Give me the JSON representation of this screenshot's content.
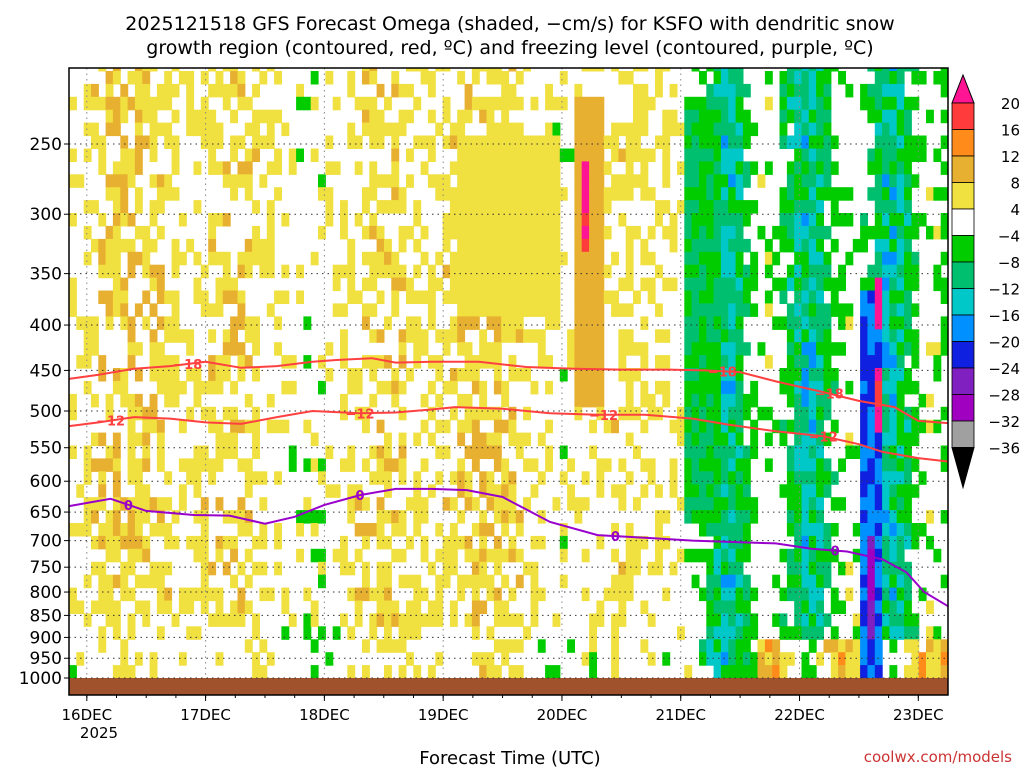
{
  "title_line1": "2025121518 GFS Forecast Omega (shaded, −cm/s) for KSFO with dendritic snow",
  "title_line2": "growth region (contoured, red, ºC) and freezing level (contoured, purple, ºC)",
  "credit": "coolwx.com/models",
  "chart_data": {
    "type": "heatmap",
    "title": "2025121518 GFS Forecast Omega (shaded, −cm/s) for KSFO with dendritic snow growth region (contoured, red, ºC) and freezing level (contoured, purple, ºC)",
    "xlabel": "Forecast Time (UTC)",
    "ylabel": "",
    "x_start_label_year": "2025",
    "xlim_days": [
      -0.15,
      7.25
    ],
    "ylim_hpa": [
      1000,
      200
    ],
    "x_ticks": [
      {
        "label": "16DEC",
        "day": 0
      },
      {
        "label": "17DEC",
        "day": 1
      },
      {
        "label": "18DEC",
        "day": 2
      },
      {
        "label": "19DEC",
        "day": 3
      },
      {
        "label": "20DEC",
        "day": 4
      },
      {
        "label": "21DEC",
        "day": 5
      },
      {
        "label": "22DEC",
        "day": 6
      },
      {
        "label": "23DEC",
        "day": 7
      }
    ],
    "y_ticks": [
      250,
      300,
      350,
      400,
      450,
      500,
      550,
      600,
      650,
      700,
      750,
      800,
      850,
      900,
      950,
      1000
    ],
    "grid": true,
    "colorbar": {
      "labels": [
        "20",
        "16",
        "12",
        "8",
        "4",
        "−4",
        "−8",
        "−12",
        "−16",
        "−20",
        "−24",
        "−28",
        "−32",
        "−36"
      ],
      "bands": [
        {
          "from": 20,
          "to": 24,
          "color": "#ff1493"
        },
        {
          "from": 16,
          "to": 20,
          "color": "#ff3b3b"
        },
        {
          "from": 12,
          "to": 16,
          "color": "#ff8c1a"
        },
        {
          "from": 8,
          "to": 12,
          "color": "#e8b030"
        },
        {
          "from": 4,
          "to": 8,
          "color": "#f0e040"
        },
        {
          "from": -4,
          "to": 4,
          "color": "#ffffff"
        },
        {
          "from": -8,
          "to": -4,
          "color": "#00cc00"
        },
        {
          "from": -12,
          "to": -8,
          "color": "#00c070"
        },
        {
          "from": -16,
          "to": -12,
          "color": "#00c8c8"
        },
        {
          "from": -20,
          "to": -16,
          "color": "#0090ff"
        },
        {
          "from": -24,
          "to": -20,
          "color": "#1020e0"
        },
        {
          "from": -28,
          "to": -24,
          "color": "#8020c0"
        },
        {
          "from": -32,
          "to": -28,
          "color": "#a000c0"
        },
        {
          "from": -36,
          "to": -32,
          "color": "#a0a0a0"
        }
      ]
    },
    "contours": [
      {
        "name": "-18C isotherm",
        "label": "−18",
        "color": "#ff4040",
        "points": [
          [
            -0.15,
            460
          ],
          [
            0.1,
            455
          ],
          [
            0.4,
            448
          ],
          [
            0.7,
            445
          ],
          [
            1.0,
            440
          ],
          [
            1.3,
            447
          ],
          [
            1.6,
            445
          ],
          [
            1.9,
            440
          ],
          [
            2.1,
            438
          ],
          [
            2.4,
            436
          ],
          [
            2.6,
            441
          ],
          [
            2.9,
            440
          ],
          [
            3.3,
            440
          ],
          [
            3.7,
            446
          ],
          [
            4.1,
            448
          ],
          [
            4.5,
            449
          ],
          [
            4.9,
            449
          ],
          [
            5.2,
            450
          ],
          [
            5.5,
            452
          ],
          [
            5.8,
            463
          ],
          [
            6.2,
            476
          ],
          [
            6.5,
            487
          ],
          [
            6.8,
            495
          ],
          [
            7.0,
            513
          ],
          [
            7.25,
            516
          ]
        ],
        "label_days": [
          0.85,
          5.35,
          6.25
        ]
      },
      {
        "name": "-12C isotherm",
        "label": "−12",
        "color": "#ff4040",
        "points": [
          [
            -0.15,
            520
          ],
          [
            0.1,
            515
          ],
          [
            0.4,
            508
          ],
          [
            0.7,
            510
          ],
          [
            1.0,
            515
          ],
          [
            1.3,
            517
          ],
          [
            1.6,
            508
          ],
          [
            1.9,
            500
          ],
          [
            2.3,
            503
          ],
          [
            2.6,
            502
          ],
          [
            2.9,
            498
          ],
          [
            3.1,
            495
          ],
          [
            3.5,
            497
          ],
          [
            3.9,
            503
          ],
          [
            4.3,
            505
          ],
          [
            4.7,
            505
          ],
          [
            5.1,
            510
          ],
          [
            5.4,
            518
          ],
          [
            5.8,
            527
          ],
          [
            6.2,
            534
          ],
          [
            6.5,
            545
          ],
          [
            6.7,
            556
          ],
          [
            7.0,
            565
          ],
          [
            7.25,
            570
          ]
        ],
        "label_days": [
          0.2,
          2.3,
          4.35,
          6.2
        ]
      },
      {
        "name": "0C freezing level",
        "label": "0",
        "color": "#9900cc",
        "points": [
          [
            -0.15,
            640
          ],
          [
            0.2,
            628
          ],
          [
            0.5,
            648
          ],
          [
            0.9,
            655
          ],
          [
            1.2,
            656
          ],
          [
            1.5,
            670
          ],
          [
            1.75,
            658
          ],
          [
            2.0,
            638
          ],
          [
            2.3,
            622
          ],
          [
            2.6,
            612
          ],
          [
            2.9,
            612
          ],
          [
            3.2,
            614
          ],
          [
            3.5,
            625
          ],
          [
            3.9,
            667
          ],
          [
            4.3,
            690
          ],
          [
            4.7,
            695
          ],
          [
            5.1,
            700
          ],
          [
            5.5,
            703
          ],
          [
            5.8,
            705
          ],
          [
            6.1,
            715
          ],
          [
            6.4,
            720
          ],
          [
            6.7,
            735
          ],
          [
            6.9,
            760
          ],
          [
            7.05,
            800
          ],
          [
            7.25,
            830
          ]
        ],
        "label_days": [
          0.35,
          2.3,
          4.45,
          6.3
        ]
      }
    ],
    "shaded_features": [
      {
        "x0": 3.1,
        "x1": 3.95,
        "p0": 240,
        "p1": 380,
        "omega": 6
      },
      {
        "x0": 4.05,
        "x1": 4.3,
        "p0": 220,
        "p1": 480,
        "omega": 10
      },
      {
        "x0": 4.12,
        "x1": 4.22,
        "p0": 260,
        "p1": 320,
        "omega": 20
      },
      {
        "x0": 6.5,
        "x1": 6.65,
        "p0": 360,
        "p1": 970,
        "omega": -20
      },
      {
        "x0": 6.55,
        "x1": 6.62,
        "p0": 680,
        "p1": 900,
        "omega": -28
      },
      {
        "x0": 6.58,
        "x1": 6.66,
        "p0": 350,
        "p1": 400,
        "omega": 24
      },
      {
        "x0": 6.58,
        "x1": 6.66,
        "p0": 440,
        "p1": 520,
        "omega": 20
      },
      {
        "x0": 5.0,
        "x1": 5.3,
        "p0": 220,
        "p1": 660,
        "omega": -8
      }
    ]
  }
}
